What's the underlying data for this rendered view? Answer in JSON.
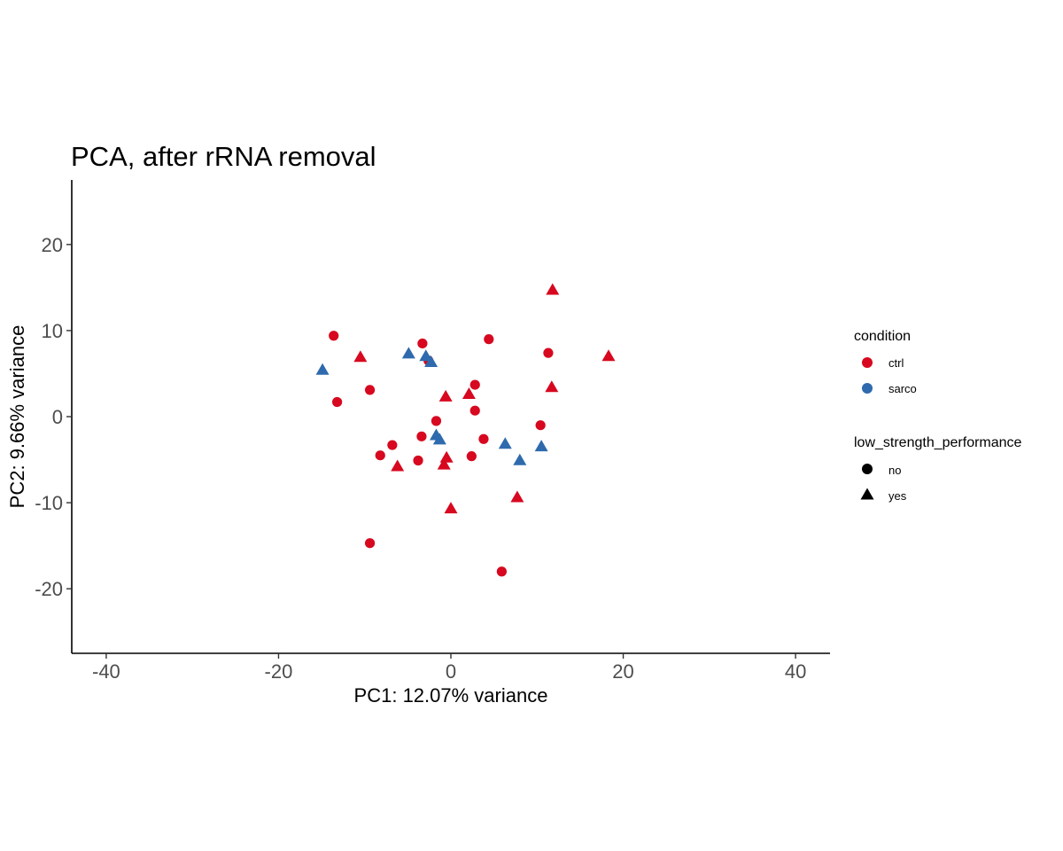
{
  "chart_data": {
    "type": "scatter",
    "title": "PCA, after rRNA removal",
    "xlabel": "PC1: 12.07% variance",
    "ylabel": "PC2: 9.66% variance",
    "xlim": [
      -44,
      44
    ],
    "ylim": [
      -27.5,
      27.5
    ],
    "xticks": [
      -40,
      -20,
      0,
      20,
      40
    ],
    "yticks": [
      -20,
      -10,
      0,
      10,
      20
    ],
    "grid": false,
    "legend_position": "right",
    "colors": {
      "ctrl": "#d7081f",
      "sarco": "#2e6aad"
    },
    "legend": {
      "color_title": "condition",
      "color_entries": [
        "ctrl",
        "sarco"
      ],
      "shape_title": "low_strength_performance",
      "shape_entries": [
        "no",
        "yes"
      ]
    },
    "points": [
      {
        "x": -13.6,
        "y": 9.4,
        "condition": "ctrl",
        "low_strength_performance": "no"
      },
      {
        "x": -13.2,
        "y": 1.7,
        "condition": "ctrl",
        "low_strength_performance": "no"
      },
      {
        "x": -9.4,
        "y": 3.1,
        "condition": "ctrl",
        "low_strength_performance": "no"
      },
      {
        "x": -9.4,
        "y": -14.7,
        "condition": "ctrl",
        "low_strength_performance": "no"
      },
      {
        "x": -8.2,
        "y": -4.5,
        "condition": "ctrl",
        "low_strength_performance": "no"
      },
      {
        "x": -6.8,
        "y": -3.3,
        "condition": "ctrl",
        "low_strength_performance": "no"
      },
      {
        "x": -3.8,
        "y": -5.1,
        "condition": "ctrl",
        "low_strength_performance": "no"
      },
      {
        "x": -3.4,
        "y": -2.3,
        "condition": "ctrl",
        "low_strength_performance": "no"
      },
      {
        "x": -3.3,
        "y": 8.5,
        "condition": "ctrl",
        "low_strength_performance": "no"
      },
      {
        "x": -2.6,
        "y": 6.5,
        "condition": "ctrl",
        "low_strength_performance": "no"
      },
      {
        "x": -1.7,
        "y": -0.5,
        "condition": "ctrl",
        "low_strength_performance": "no"
      },
      {
        "x": 2.4,
        "y": -4.6,
        "condition": "ctrl",
        "low_strength_performance": "no"
      },
      {
        "x": 2.8,
        "y": 0.7,
        "condition": "ctrl",
        "low_strength_performance": "no"
      },
      {
        "x": 2.8,
        "y": 3.7,
        "condition": "ctrl",
        "low_strength_performance": "no"
      },
      {
        "x": 3.8,
        "y": -2.6,
        "condition": "ctrl",
        "low_strength_performance": "no"
      },
      {
        "x": 4.4,
        "y": 9.0,
        "condition": "ctrl",
        "low_strength_performance": "no"
      },
      {
        "x": 5.9,
        "y": -18.0,
        "condition": "ctrl",
        "low_strength_performance": "no"
      },
      {
        "x": 10.4,
        "y": -1.0,
        "condition": "ctrl",
        "low_strength_performance": "no"
      },
      {
        "x": 11.3,
        "y": 7.4,
        "condition": "ctrl",
        "low_strength_performance": "no"
      },
      {
        "x": -10.5,
        "y": 6.9,
        "condition": "ctrl",
        "low_strength_performance": "yes"
      },
      {
        "x": -6.2,
        "y": -5.8,
        "condition": "ctrl",
        "low_strength_performance": "yes"
      },
      {
        "x": -0.8,
        "y": -5.6,
        "condition": "ctrl",
        "low_strength_performance": "yes"
      },
      {
        "x": -0.6,
        "y": 2.3,
        "condition": "ctrl",
        "low_strength_performance": "yes"
      },
      {
        "x": -0.5,
        "y": -4.8,
        "condition": "ctrl",
        "low_strength_performance": "yes"
      },
      {
        "x": 0.0,
        "y": -10.7,
        "condition": "ctrl",
        "low_strength_performance": "yes"
      },
      {
        "x": 2.1,
        "y": 2.6,
        "condition": "ctrl",
        "low_strength_performance": "yes"
      },
      {
        "x": 7.7,
        "y": -9.4,
        "condition": "ctrl",
        "low_strength_performance": "yes"
      },
      {
        "x": 11.7,
        "y": 3.4,
        "condition": "ctrl",
        "low_strength_performance": "yes"
      },
      {
        "x": 11.8,
        "y": 14.7,
        "condition": "ctrl",
        "low_strength_performance": "yes"
      },
      {
        "x": 18.3,
        "y": 7.0,
        "condition": "ctrl",
        "low_strength_performance": "yes"
      },
      {
        "x": -14.9,
        "y": 5.4,
        "condition": "sarco",
        "low_strength_performance": "yes"
      },
      {
        "x": -4.9,
        "y": 7.3,
        "condition": "sarco",
        "low_strength_performance": "yes"
      },
      {
        "x": -2.9,
        "y": 7.0,
        "condition": "sarco",
        "low_strength_performance": "yes"
      },
      {
        "x": -2.3,
        "y": 6.3,
        "condition": "sarco",
        "low_strength_performance": "yes"
      },
      {
        "x": -1.7,
        "y": -2.2,
        "condition": "sarco",
        "low_strength_performance": "yes"
      },
      {
        "x": -1.3,
        "y": -2.7,
        "condition": "sarco",
        "low_strength_performance": "yes"
      },
      {
        "x": 6.3,
        "y": -3.2,
        "condition": "sarco",
        "low_strength_performance": "yes"
      },
      {
        "x": 8.0,
        "y": -5.1,
        "condition": "sarco",
        "low_strength_performance": "yes"
      },
      {
        "x": 10.5,
        "y": -3.5,
        "condition": "sarco",
        "low_strength_performance": "yes"
      }
    ]
  }
}
